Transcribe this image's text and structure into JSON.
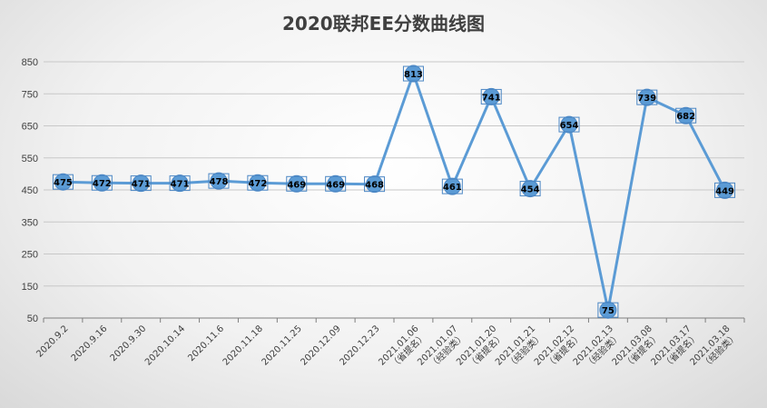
{
  "chart_data": {
    "type": "line",
    "title": "2020联邦EE分数曲线图",
    "xlabel": "",
    "ylabel": "",
    "ylim": [
      50,
      850
    ],
    "yticks": [
      50,
      150,
      250,
      350,
      450,
      550,
      650,
      750,
      850
    ],
    "grid": true,
    "line_color": "#5B9BD5",
    "categories": [
      "2020.9.2",
      "2020.9.16",
      "2020.9.30",
      "2020.10.14",
      "2020.11.6",
      "2020.11.18",
      "2020.11.25",
      "2020.12.09",
      "2020.12.23",
      "2021.01.06\n（省提名）",
      "2021.01.07\n（经验类）",
      "2021.01.20\n（省提名）",
      "2021.01.21\n（经验类）",
      "2021.02.12\n（省提名）",
      "2021.02.13\n（经验类）",
      "2021.03.08\n（省提名）",
      "2021.03.17\n（省提名）",
      "2021.03.18\n（经验类）"
    ],
    "series": [
      {
        "values": [
          475,
          472,
          471,
          471,
          478,
          472,
          469,
          469,
          468,
          813,
          461,
          741,
          454,
          654,
          75,
          739,
          682,
          449
        ]
      }
    ]
  }
}
